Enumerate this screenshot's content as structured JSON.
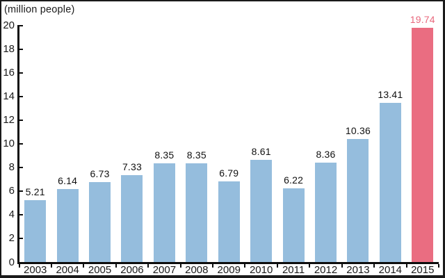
{
  "chart_data": {
    "type": "bar",
    "title": "",
    "unit_label": "(million people)",
    "categories": [
      "2003",
      "2004",
      "2005",
      "2006",
      "2007",
      "2008",
      "2009",
      "2010",
      "2011",
      "2012",
      "2013",
      "2014",
      "2015"
    ],
    "values": [
      5.21,
      6.14,
      6.73,
      7.33,
      8.35,
      8.35,
      6.79,
      8.61,
      6.22,
      8.36,
      10.36,
      13.41,
      19.74
    ],
    "value_labels": [
      "5.21",
      "6.14",
      "6.73",
      "7.33",
      "8.35",
      "8.35",
      "6.79",
      "8.61",
      "6.22",
      "8.36",
      "10.36",
      "13.41",
      "19.74"
    ],
    "highlight_index": 12,
    "y_axis": {
      "min": 0,
      "max": 20,
      "tick_step": 2,
      "tick_labels": [
        "0",
        "2",
        "4",
        "6",
        "8",
        "10",
        "12",
        "14",
        "16",
        "18",
        "20"
      ]
    },
    "x_axis": {
      "label": ""
    },
    "grid": false,
    "legend": null,
    "colors": {
      "bar": "#95bddd",
      "highlight_bar": "#ea6d81",
      "highlight_label": "#e8677c",
      "value_label": "#111111",
      "axis": "#0d0d0d",
      "frame": "#1a1a1a"
    }
  }
}
